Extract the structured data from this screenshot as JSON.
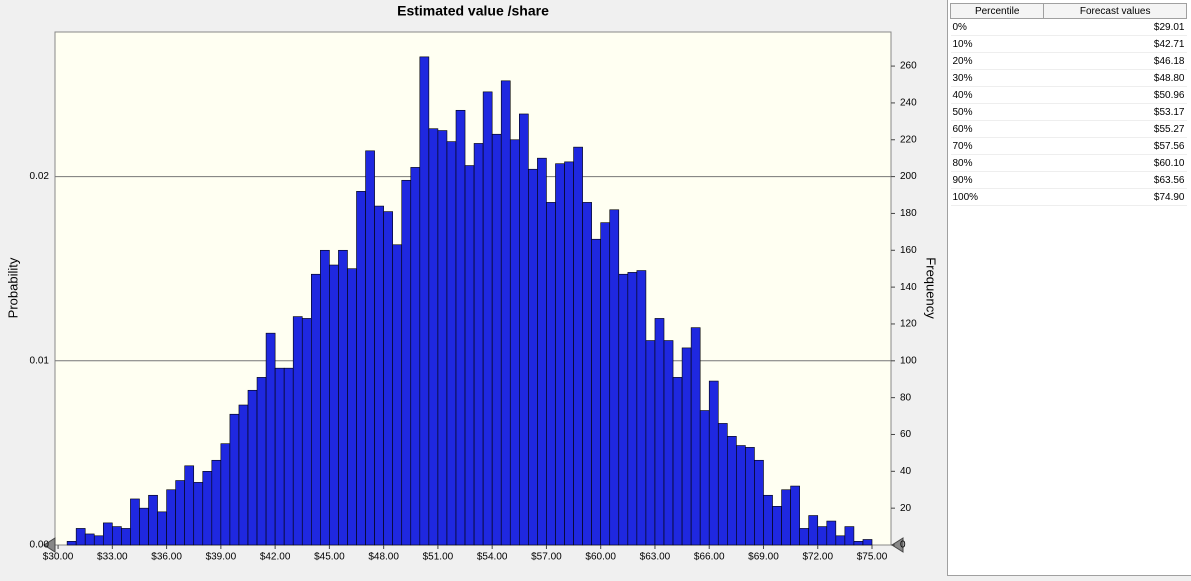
{
  "chart_data": {
    "type": "histogram",
    "title": "Estimated value /share",
    "ylabel": "Probability",
    "y2label": "Frequency",
    "bins": [
      30.5,
      31.0,
      31.5,
      32.0,
      32.5,
      33.0,
      33.5,
      34.0,
      34.5,
      35.0,
      35.5,
      36.0,
      36.5,
      37.0,
      37.5,
      38.0,
      38.5,
      39.0,
      39.5,
      40.0,
      40.5,
      41.0,
      41.5,
      42.0,
      42.5,
      43.0,
      43.5,
      44.0,
      44.5,
      45.0,
      45.5,
      46.0,
      46.5,
      47.0,
      47.5,
      48.0,
      48.5,
      49.0,
      49.5,
      50.0,
      50.5,
      51.0,
      51.5,
      52.0,
      52.5,
      53.0,
      53.5,
      54.0,
      54.5,
      55.0,
      55.5,
      56.0,
      56.5,
      57.0,
      57.5,
      58.0,
      58.5,
      59.0,
      59.5,
      60.0,
      60.5,
      61.0,
      61.5,
      62.0,
      62.5,
      63.0,
      63.5,
      64.0,
      64.5,
      65.0,
      65.5,
      66.0,
      66.5,
      67.0,
      67.5,
      68.0,
      68.5,
      69.0,
      69.5,
      70.0,
      70.5,
      71.0,
      71.5,
      72.0,
      72.5,
      73.0,
      73.5,
      74.0,
      74.5,
      75.0
    ],
    "series": [
      {
        "name": "Frequency",
        "color": "#1f28e0",
        "axis": "y2",
        "values": [
          2,
          9,
          6,
          5,
          12,
          10,
          9,
          25,
          20,
          27,
          18,
          30,
          35,
          43,
          34,
          40,
          46,
          55,
          71,
          76,
          84,
          91,
          115,
          96,
          96,
          124,
          123,
          147,
          160,
          152,
          160,
          150,
          192,
          214,
          184,
          181,
          163,
          198,
          205,
          265,
          226,
          225,
          219,
          236,
          206,
          218,
          246,
          223,
          252,
          220,
          234,
          204,
          210,
          186,
          207,
          208,
          216,
          186,
          166,
          175,
          182,
          147,
          148,
          149,
          111,
          123,
          111,
          91,
          107,
          118,
          73,
          89,
          66,
          59,
          54,
          53,
          46,
          27,
          21,
          30,
          32,
          9,
          16,
          10,
          13,
          5,
          10,
          2,
          3
        ]
      }
    ],
    "xlim": [
      29.83,
      76.05
    ],
    "xticks": [
      {
        "value": 30,
        "label": "$30.00"
      },
      {
        "value": 33,
        "label": "$33.00"
      },
      {
        "value": 36,
        "label": "$36.00"
      },
      {
        "value": 39,
        "label": "$39.00"
      },
      {
        "value": 42,
        "label": "$42.00"
      },
      {
        "value": 45,
        "label": "$45.00"
      },
      {
        "value": 48,
        "label": "$48.00"
      },
      {
        "value": 51,
        "label": "$51.00"
      },
      {
        "value": 54,
        "label": "$54.00"
      },
      {
        "value": 57,
        "label": "$57.00"
      },
      {
        "value": 60,
        "label": "$60.00"
      },
      {
        "value": 63,
        "label": "$63.00"
      },
      {
        "value": 66,
        "label": "$66.00"
      },
      {
        "value": 69,
        "label": "$69.00"
      },
      {
        "value": 72,
        "label": "$72.00"
      },
      {
        "value": 75,
        "label": "$75.00"
      }
    ],
    "ylim": [
      0,
      0.02785
    ],
    "yticks": [
      {
        "value": 0,
        "label": "0.00"
      },
      0.01,
      0.02
    ],
    "y2lim": [
      0,
      278.5
    ],
    "y2ticks": [
      0,
      20,
      40,
      60,
      80,
      100,
      120,
      140,
      160,
      180,
      200,
      220,
      240,
      260
    ],
    "grid": true
  },
  "table": {
    "header": [
      "Percentile",
      "Forecast values"
    ],
    "rows": [
      [
        "0%",
        "$29.01"
      ],
      [
        "10%",
        "$42.71"
      ],
      [
        "20%",
        "$46.18"
      ],
      [
        "30%",
        "$48.80"
      ],
      [
        "40%",
        "$50.96"
      ],
      [
        "50%",
        "$53.17"
      ],
      [
        "60%",
        "$55.27"
      ],
      [
        "70%",
        "$57.56"
      ],
      [
        "80%",
        "$60.10"
      ],
      [
        "90%",
        "$63.56"
      ],
      [
        "100%",
        "$74.90"
      ]
    ]
  }
}
